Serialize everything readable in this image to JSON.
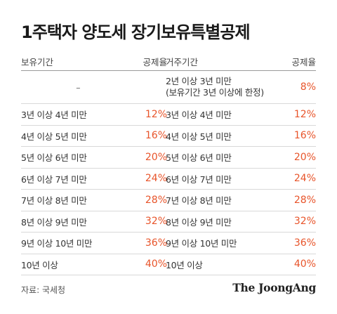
{
  "title": "1주택자 양도세 장기보유특별공제",
  "left_table": {
    "header_period": "보유기간",
    "header_rate": "공제율",
    "rows": [
      {
        "period": "–",
        "rate": ""
      },
      {
        "period": "3년 이상 4년 미만",
        "rate": "12%"
      },
      {
        "period": "4년 이상 5년 미만",
        "rate": "16%"
      },
      {
        "period": "5년 이상 6년 미만",
        "rate": "20%"
      },
      {
        "period": "6년 이상 7년 미만",
        "rate": "24%"
      },
      {
        "period": "7년 이상 8년 미만",
        "rate": "28%"
      },
      {
        "period": "8년 이상 9년 미만",
        "rate": "32%"
      },
      {
        "period": "9년 이상 10년 미만",
        "rate": "36%"
      },
      {
        "period": "10년 이상",
        "rate": "40%"
      }
    ]
  },
  "right_table": {
    "header_period": "거주기간",
    "header_rate": "공제율",
    "rows": [
      {
        "period": "2년 이상 3년 미만\n(보유기간 3년 이상에 한정)",
        "rate": "8%"
      },
      {
        "period": "3년 이상 4년 미만",
        "rate": "12%"
      },
      {
        "period": "4년 이상 5년 미만",
        "rate": "16%"
      },
      {
        "period": "5년 이상 6년 미만",
        "rate": "20%"
      },
      {
        "period": "6년 이상 7년 미만",
        "rate": "24%"
      },
      {
        "period": "7년 이상 8년 미만",
        "rate": "28%"
      },
      {
        "period": "8년 이상 9년 미만",
        "rate": "32%"
      },
      {
        "period": "9년 이상 10년 미만",
        "rate": "36%"
      },
      {
        "period": "10년 이상",
        "rate": "40%"
      }
    ]
  },
  "source": "자료: 국세청",
  "brand": "The JoongAng",
  "colors": {
    "accent": "#e8542a",
    "text": "#333333"
  }
}
